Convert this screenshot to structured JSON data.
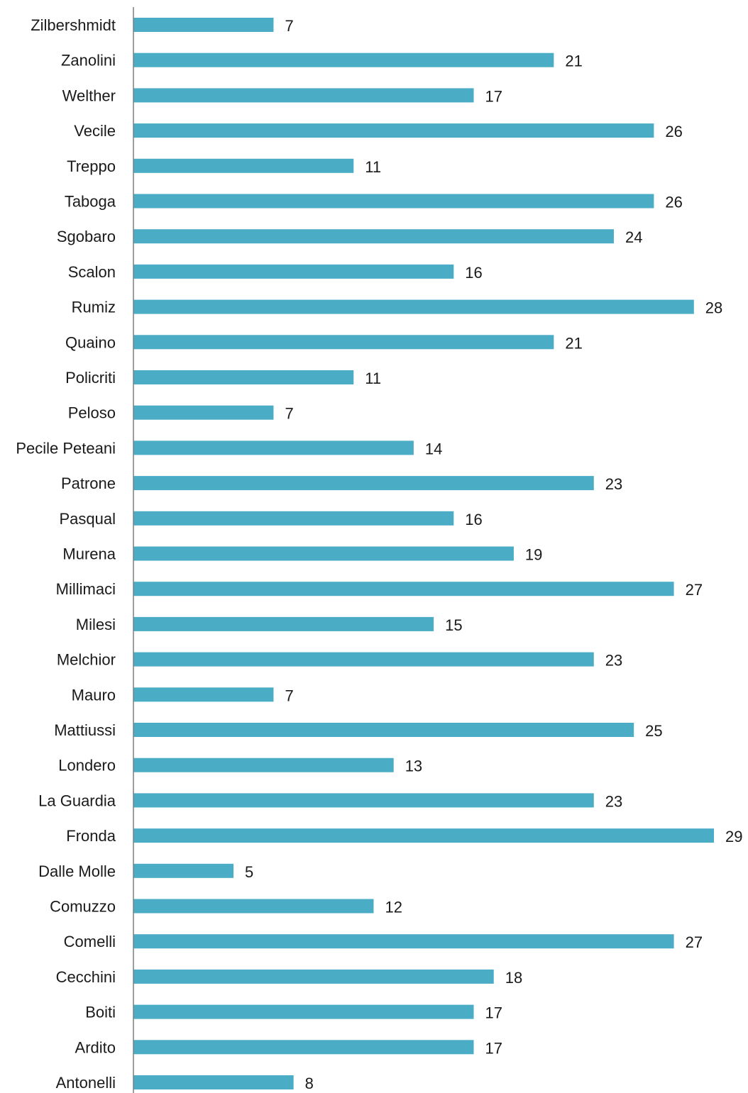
{
  "chart_data": {
    "type": "bar",
    "orientation": "horizontal",
    "categories": [
      "Zilbershmidt",
      "Zanolini",
      "Welther",
      "Vecile",
      "Treppo",
      "Taboga",
      "Sgobaro",
      "Scalon",
      "Rumiz",
      "Quaino",
      "Policriti",
      "Peloso",
      "Pecile Peteani",
      "Patrone",
      "Pasqual",
      "Murena",
      "Millimaci",
      "Milesi",
      "Melchior",
      "Mauro",
      "Mattiussi",
      "Londero",
      "La Guardia",
      "Fronda",
      "Dalle Molle",
      "Comuzzo",
      "Comelli",
      "Cecchini",
      "Boiti",
      "Ardito",
      "Antonelli"
    ],
    "values": [
      7,
      21,
      17,
      26,
      11,
      26,
      24,
      16,
      28,
      21,
      11,
      7,
      14,
      23,
      16,
      19,
      27,
      15,
      23,
      7,
      25,
      13,
      23,
      29,
      5,
      12,
      27,
      18,
      17,
      17,
      8
    ],
    "xlim": [
      0,
      29
    ],
    "grid": false,
    "data_labels": true,
    "bar_color": "#4BACC6",
    "axis_color": "#7f7f7f"
  }
}
